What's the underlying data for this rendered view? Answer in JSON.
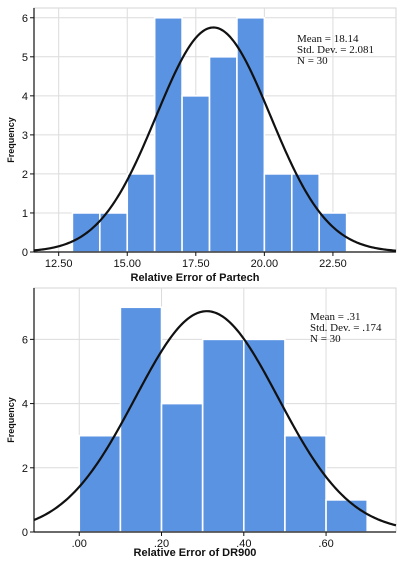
{
  "chart_data": [
    {
      "type": "bar",
      "subtype": "histogram",
      "title": "",
      "xlabel": "Relative Error of Partech",
      "ylabel": "Frequency",
      "bin_width": 1.0,
      "bins": [
        {
          "start": 13.0,
          "end": 14.0,
          "count": 1
        },
        {
          "start": 14.0,
          "end": 15.0,
          "count": 1
        },
        {
          "start": 15.0,
          "end": 16.0,
          "count": 2
        },
        {
          "start": 16.0,
          "end": 17.0,
          "count": 6
        },
        {
          "start": 17.0,
          "end": 18.0,
          "count": 4
        },
        {
          "start": 18.0,
          "end": 19.0,
          "count": 5
        },
        {
          "start": 19.0,
          "end": 20.0,
          "count": 6
        },
        {
          "start": 20.0,
          "end": 21.0,
          "count": 2
        },
        {
          "start": 21.0,
          "end": 22.0,
          "count": 2
        },
        {
          "start": 22.0,
          "end": 23.0,
          "count": 1
        }
      ],
      "xlim": [
        11.6,
        24.8
      ],
      "ylim": [
        0,
        6.25
      ],
      "xticks": [
        12.5,
        15.0,
        17.5,
        20.0,
        22.5
      ],
      "xtick_labels": [
        "12.50",
        "15.00",
        "17.50",
        "20.00",
        "22.50"
      ],
      "yticks": [
        0,
        1,
        2,
        3,
        4,
        5,
        6
      ],
      "ytick_labels": [
        "0",
        "1",
        "2",
        "3",
        "4",
        "5",
        "6"
      ],
      "grid": true,
      "bar_color": "#5b93e3",
      "curve": {
        "type": "normal",
        "mean": 18.14,
        "sd": 2.081,
        "n": 30
      },
      "stats": [
        "Mean = 18.14",
        "Std. Dev. = 2.081",
        "N = 30"
      ]
    },
    {
      "type": "bar",
      "subtype": "histogram",
      "title": "",
      "xlabel": "Relative Error of DR900",
      "ylabel": "Frequency",
      "bin_width": 0.1,
      "bins": [
        {
          "start": 0.0,
          "end": 0.1,
          "count": 3
        },
        {
          "start": 0.1,
          "end": 0.2,
          "count": 7
        },
        {
          "start": 0.2,
          "end": 0.3,
          "count": 4
        },
        {
          "start": 0.3,
          "end": 0.4,
          "count": 6
        },
        {
          "start": 0.4,
          "end": 0.5,
          "count": 6
        },
        {
          "start": 0.5,
          "end": 0.6,
          "count": 3
        },
        {
          "start": 0.6,
          "end": 0.7,
          "count": 1
        }
      ],
      "xlim": [
        -0.11,
        0.77
      ],
      "ylim": [
        0,
        7.6
      ],
      "xticks": [
        0.0,
        0.2,
        0.4,
        0.6
      ],
      "xtick_labels": [
        ".00",
        ".20",
        ".40",
        ".60"
      ],
      "yticks": [
        0,
        2,
        4,
        6
      ],
      "ytick_labels": [
        "0",
        "2",
        "4",
        "6"
      ],
      "grid": true,
      "bar_color": "#5b93e3",
      "curve": {
        "type": "normal",
        "mean": 0.31,
        "sd": 0.174,
        "n": 30
      },
      "stats": [
        "Mean = .31",
        "Std. Dev. = .174",
        "N = 30"
      ]
    }
  ]
}
